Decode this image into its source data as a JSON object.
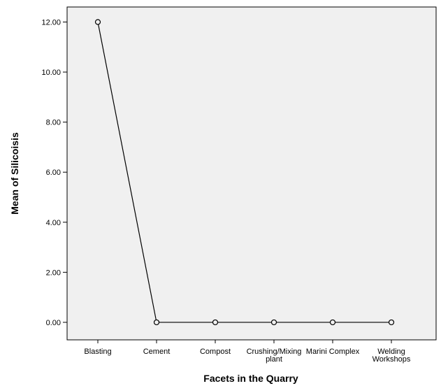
{
  "chart_data": {
    "type": "line",
    "title": "",
    "xlabel": "Facets in the Quarry",
    "ylabel": "Mean of Silicoisis",
    "categories": [
      "Blasting",
      "Cement",
      "Compost",
      "Crushing/Mixing plant",
      "Marini Complex",
      "Welding Workshops"
    ],
    "category_lines": [
      [
        "Blasting"
      ],
      [
        "Cement"
      ],
      [
        "Compost"
      ],
      [
        "Crushing/Mixing",
        "plant"
      ],
      [
        "Marini Complex"
      ],
      [
        "Welding",
        "Workshops"
      ]
    ],
    "series": [
      {
        "values": [
          12.0,
          0.0,
          0.0,
          0.0,
          0.0,
          0.0
        ]
      }
    ],
    "yticks": [
      "0.00",
      "2.00",
      "4.00",
      "6.00",
      "8.00",
      "10.00",
      "12.00"
    ],
    "ylim": [
      -0.7,
      12.6
    ],
    "grid": false,
    "colors": {
      "plot_background": "#f0f0f0",
      "line": "#000000",
      "marker_fill": "#f0f0f0"
    }
  }
}
